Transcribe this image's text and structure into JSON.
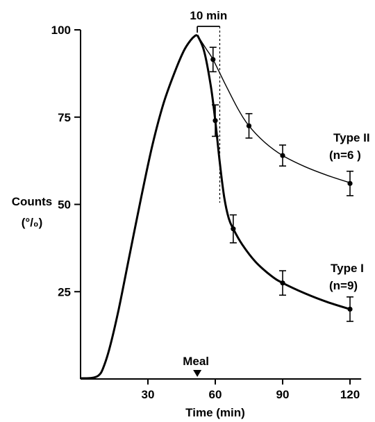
{
  "chart_data": {
    "type": "line",
    "title": "",
    "xlabel": "Time (min)",
    "ylabel_line1": "Counts",
    "ylabel_line2": "(°/₀)",
    "xlim": [
      0,
      125
    ],
    "ylim": [
      0,
      100
    ],
    "x_ticks": [
      30,
      60,
      90,
      120
    ],
    "y_ticks": [
      25,
      50,
      75,
      100
    ],
    "grid": false,
    "rise_curve": {
      "x": [
        0,
        5,
        8,
        10,
        13,
        17,
        22,
        27,
        32,
        37,
        42,
        46,
        49,
        51,
        52
      ],
      "y": [
        0.2,
        0.3,
        1,
        3,
        9,
        20,
        36,
        52,
        67,
        79,
        88,
        94,
        97,
        98.3,
        98.5
      ]
    },
    "series": [
      {
        "name": "Type II",
        "n_label": "(n=6 )",
        "points": [
          {
            "x": 59,
            "y": 91.5,
            "err": 3.5
          },
          {
            "x": 75,
            "y": 72.5,
            "err": 3.5
          },
          {
            "x": 90,
            "y": 64,
            "err": 3.0
          },
          {
            "x": 120,
            "y": 56,
            "err": 3.5
          }
        ],
        "curve": {
          "x": [
            52,
            56,
            59,
            64,
            70,
            75,
            82,
            90,
            100,
            110,
            120
          ],
          "y": [
            98.5,
            94.5,
            91.5,
            85,
            77.5,
            72.5,
            67.8,
            64,
            60.8,
            58.3,
            56.2
          ]
        }
      },
      {
        "name": "Type I",
        "n_label": "(n=9)",
        "points": [
          {
            "x": 60,
            "y": 74,
            "err": 4.5
          },
          {
            "x": 68,
            "y": 43,
            "err": 4.0
          },
          {
            "x": 90,
            "y": 27.5,
            "err": 3.5
          },
          {
            "x": 120,
            "y": 20,
            "err": 3.5
          }
        ],
        "curve": {
          "x": [
            52,
            55,
            58,
            60,
            62,
            64,
            66,
            68,
            72,
            78,
            85,
            90,
            100,
            110,
            120
          ],
          "y": [
            98.5,
            94,
            84,
            74,
            62,
            52,
            46,
            43,
            38.5,
            33.5,
            29.5,
            27.5,
            24.5,
            22,
            20
          ]
        }
      }
    ],
    "annotations": {
      "interval_label": "10 min",
      "interval_start": 52,
      "interval_end": 62,
      "meal_label": "Meal",
      "meal_x": 52
    }
  }
}
